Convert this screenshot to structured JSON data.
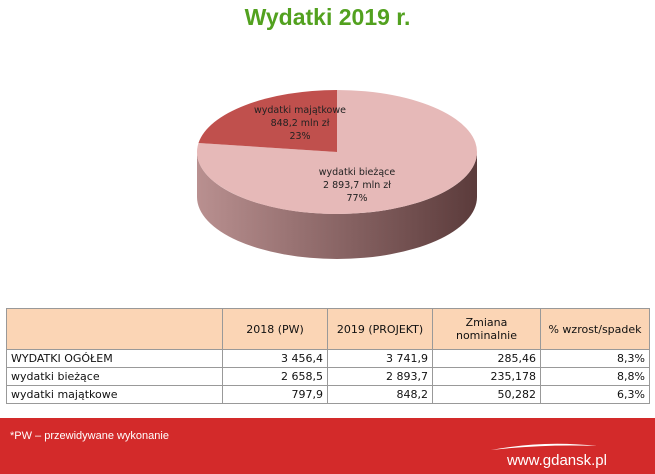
{
  "title": "Wydatki 2019 r.",
  "chart_data": {
    "type": "pie",
    "title": "Wydatki 2019 r.",
    "slices": [
      {
        "name": "wydatki majątkowe",
        "value": 848.2,
        "value_label": "848,2 mln zł",
        "percent": 23,
        "percent_label": "23%",
        "color": "#c0504d"
      },
      {
        "name": "wydatki bieżące",
        "value": 2893.7,
        "value_label": "2 893,7 mln zł",
        "percent": 77,
        "percent_label": "77%",
        "color": "#e6b9b8"
      }
    ]
  },
  "table": {
    "headers": [
      "",
      "2018 (PW)",
      "2019 (PROJEKT)",
      "Zmiana nominalnie",
      "% wzrost/spadek"
    ],
    "rows": [
      [
        "WYDATKI OGÓŁEM",
        "3 456,4",
        "3 741,9",
        "285,46",
        "8,3%"
      ],
      [
        "wydatki bieżące",
        "2 658,5",
        "2 893,7",
        "235,178",
        "8,8%"
      ],
      [
        "wydatki majątkowe",
        "797,9",
        "848,2",
        "50,282",
        "6,3%"
      ]
    ]
  },
  "footer": {
    "note": "*PW – przewidywane wykonanie",
    "website": "www.gdansk.pl"
  }
}
